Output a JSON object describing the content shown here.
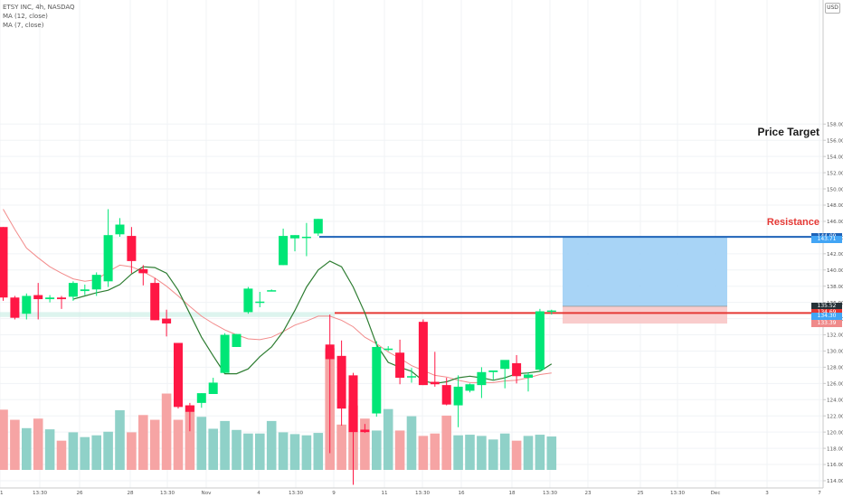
{
  "legend": {
    "symbol": "ETSY INC, 4h, NASDAQ",
    "ma12": "MA (12, close)",
    "ma7": "MA (7, close)"
  },
  "currency_button": "USD",
  "annotations": {
    "price_target": "Price Target",
    "resistance": "Resistance"
  },
  "price_tags": [
    {
      "label": "144.09",
      "value": 144.09,
      "color": "#1e63b8"
    },
    {
      "label": "143.71",
      "value": 143.71,
      "color": "#42a5f5"
    },
    {
      "label": "135.52",
      "value": 135.52,
      "color": "#263238"
    },
    {
      "label": "134.69",
      "value": 134.69,
      "color": "#e53935"
    },
    {
      "label": "134.30",
      "value": 134.3,
      "color": "#42a5f5"
    },
    {
      "label": "133.39",
      "value": 133.39,
      "color": "#ef8a8a"
    }
  ],
  "price_tag_prefixes": {
    "134.69": "Tgt",
    "134.30": "Bid",
    "133.39": "Stop"
  },
  "colors": {
    "up": "#00e676",
    "down": "#ff1744",
    "vol_up": "#8fd1c8",
    "vol_down": "#f6a4a4",
    "ma12": "#f28b8b",
    "ma7": "#2e7d32",
    "target_line": "#1e63b8",
    "resistance_line": "#e53935",
    "profit_zone": "#9ecff5",
    "loss_zone": "#f8c6c6"
  },
  "chart_data": {
    "type": "candlestick",
    "title": "ETSY INC, 4h, NASDAQ",
    "y_range": [
      103,
      160
    ],
    "y_ticks": [
      104,
      106,
      108,
      110,
      112,
      114,
      116,
      118,
      120,
      122,
      124,
      126,
      128,
      130,
      132,
      134,
      136,
      138,
      140,
      142,
      144,
      146,
      148,
      150,
      152,
      154,
      156,
      158
    ],
    "x_ticks": [
      "21",
      "13:30",
      "26",
      "28",
      "13:30",
      "Nov",
      "4",
      "13:30",
      "9",
      "11",
      "13:30",
      "16",
      "18",
      "13:30",
      "23",
      "25",
      "13:30",
      "Dec",
      "3",
      "7"
    ],
    "grid": true,
    "legend_position": "top-left",
    "candles": [
      [
        145.3,
        145.3,
        136.2,
        136.6
      ],
      [
        136.6,
        136.8,
        133.9,
        134.1
      ],
      [
        134.6,
        137.1,
        133.9,
        136.8
      ],
      [
        136.9,
        138.4,
        133.9,
        136.4
      ],
      [
        136.4,
        136.9,
        136.0,
        136.6
      ],
      [
        136.6,
        136.8,
        135.2,
        136.4
      ],
      [
        136.7,
        138.6,
        136.2,
        138.4
      ],
      [
        137.4,
        138.2,
        136.9,
        137.6
      ],
      [
        137.6,
        139.7,
        136.8,
        139.4
      ],
      [
        138.6,
        147.5,
        137.9,
        144.3
      ],
      [
        144.4,
        146.4,
        144.1,
        145.6
      ],
      [
        144.2,
        145.3,
        139.6,
        141.1
      ],
      [
        140.1,
        140.6,
        138.1,
        139.6
      ],
      [
        138.4,
        139.0,
        133.8,
        133.8
      ],
      [
        134.0,
        135.1,
        131.8,
        133.4
      ],
      [
        131.0,
        131.0,
        122.9,
        123.1
      ],
      [
        123.3,
        123.6,
        120.1,
        122.5
      ],
      [
        123.6,
        124.8,
        123.0,
        124.8
      ],
      [
        124.7,
        126.7,
        124.7,
        126.1
      ],
      [
        127.3,
        132.2,
        127.3,
        132.0
      ],
      [
        130.5,
        132.1,
        130.5,
        132.1
      ],
      [
        134.8,
        137.9,
        134.6,
        137.7
      ],
      [
        136.1,
        137.3,
        135.4,
        136.1
      ],
      [
        137.4,
        137.6,
        137.4,
        137.5
      ],
      [
        140.6,
        145.1,
        140.6,
        144.2
      ],
      [
        143.9,
        144.3,
        142.3,
        144.3
      ],
      [
        144.1,
        145.8,
        141.7,
        144.1
      ],
      [
        144.5,
        146.3,
        144.2,
        146.3
      ],
      [
        130.8,
        134.5,
        117.4,
        129.0
      ],
      [
        129.4,
        131.3,
        120.8,
        122.9
      ],
      [
        127.0,
        127.3,
        113.5,
        120.0
      ],
      [
        120.3,
        121.0,
        119.9,
        120.0
      ],
      [
        122.3,
        131.2,
        121.9,
        130.5
      ],
      [
        130.3,
        130.6,
        130.0,
        130.3
      ],
      [
        129.8,
        131.4,
        125.9,
        126.7
      ],
      [
        126.9,
        127.9,
        126.1,
        126.9
      ],
      [
        133.6,
        133.9,
        125.8,
        125.8
      ],
      [
        126.2,
        129.9,
        125.6,
        125.9
      ],
      [
        125.8,
        126.7,
        123.3,
        123.4
      ],
      [
        123.3,
        127.0,
        120.6,
        125.6
      ],
      [
        125.1,
        126.0,
        124.9,
        125.9
      ],
      [
        125.8,
        128.0,
        124.2,
        127.4
      ],
      [
        127.4,
        127.6,
        126.4,
        127.6
      ],
      [
        127.8,
        128.7,
        125.4,
        128.9
      ],
      [
        128.5,
        129.5,
        126.0,
        126.9
      ],
      [
        126.7,
        127.4,
        125.0,
        127.1
      ],
      [
        127.7,
        135.2,
        127.5,
        134.9
      ],
      [
        134.9,
        135.1,
        134.5,
        135.0
      ]
    ],
    "volume": [
      10.1,
      8.4,
      7.0,
      8.6,
      6.8,
      4.9,
      6.3,
      5.5,
      5.8,
      6.4,
      10.0,
      6.3,
      9.2,
      8.4,
      12.8,
      8.4,
      10.8,
      8.9,
      6.9,
      8.2,
      6.7,
      6.1,
      6.1,
      8.2,
      6.3,
      6.0,
      5.8,
      6.2,
      20.4,
      7.6,
      10.8,
      8.6,
      6.6,
      10.2,
      6.6,
      9.0,
      5.7,
      6.1,
      9.1,
      5.8,
      5.9,
      5.7,
      5.1,
      6.1,
      4.9,
      5.7,
      5.9,
      5.6
    ],
    "ma12": [
      147.5,
      145.0,
      142.7,
      141.5,
      140.4,
      139.6,
      138.9,
      138.6,
      138.8,
      139.8,
      140.6,
      140.4,
      139.8,
      139.0,
      138.0,
      136.8,
      135.5,
      134.3,
      133.4,
      132.6,
      132.0,
      131.5,
      131.4,
      131.7,
      132.4,
      133.2,
      133.7,
      134.3,
      134.3,
      133.8,
      133.0,
      131.7,
      130.9,
      129.9,
      129.1,
      128.2,
      127.6,
      127.0,
      126.8,
      126.4,
      126.1,
      126.1,
      126.1,
      126.3,
      126.4,
      126.7,
      127.1,
      127.3
    ],
    "ma7": [
      null,
      null,
      null,
      null,
      null,
      null,
      136.4,
      136.8,
      137.2,
      137.5,
      138.2,
      139.5,
      140.4,
      140.3,
      139.6,
      137.5,
      134.6,
      131.7,
      129.4,
      127.2,
      127.2,
      127.8,
      129.3,
      130.5,
      132.4,
      135.0,
      137.9,
      140.0,
      141.1,
      140.4,
      137.9,
      134.7,
      130.8,
      128.6,
      128.0,
      127.5,
      126.3,
      126.0,
      126.2,
      126.7,
      126.9,
      126.7,
      126.4,
      126.7,
      127.2,
      127.3,
      127.5,
      128.4
    ]
  },
  "position_tool": {
    "entry": 135.52,
    "target": 144.09,
    "stop": 133.39,
    "resistance": 134.69,
    "target_level": 144.09
  }
}
